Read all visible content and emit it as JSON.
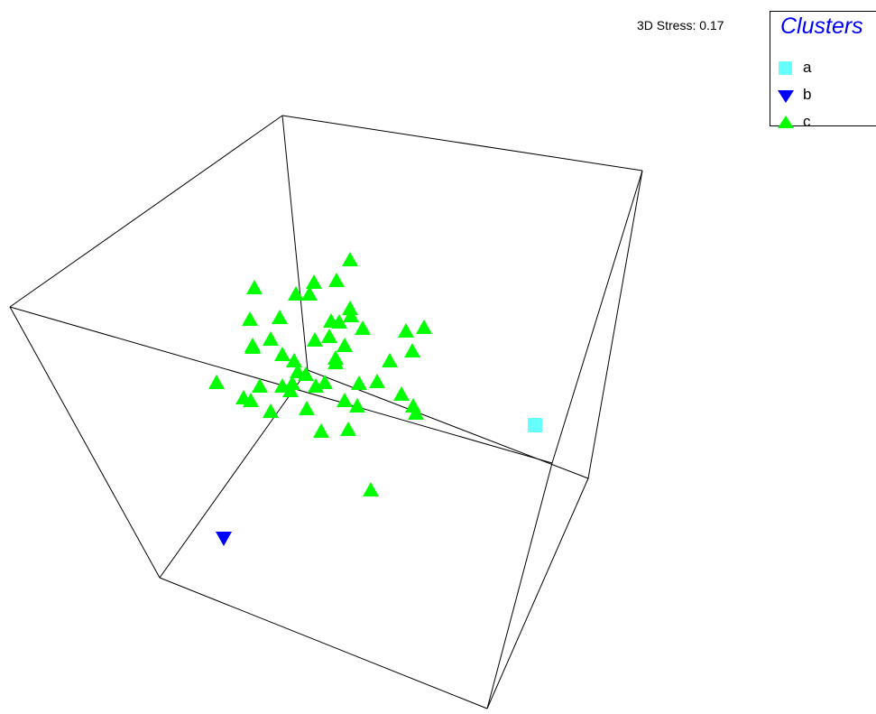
{
  "stress_label": "3D Stress: 0.17",
  "legend": {
    "title": "Clusters",
    "items": [
      {
        "label": "a",
        "shape": "square",
        "color": "#66ffff"
      },
      {
        "label": "b",
        "shape": "triangle-down",
        "color": "#0000ff"
      },
      {
        "label": "c",
        "shape": "triangle-up",
        "color": "#00ff00"
      }
    ]
  },
  "chart_data": {
    "type": "scatter",
    "subtype": "3D MDS ordination",
    "title": "",
    "xlabel": "",
    "ylabel": "",
    "series": [
      {
        "name": "a",
        "marker": "square",
        "color": "#66ffff",
        "points": [
          [
            593,
            471
          ]
        ]
      },
      {
        "name": "b",
        "marker": "triangle-down",
        "color": "#0000ff",
        "points": [
          [
            248,
            596
          ]
        ]
      },
      {
        "name": "c",
        "marker": "triangle-up",
        "color": "#00ff00",
        "points": [
          [
            388,
            288
          ],
          [
            282,
            319
          ],
          [
            348,
            313
          ],
          [
            373,
            311
          ],
          [
            328,
            326
          ],
          [
            343,
            326
          ],
          [
            277,
            354
          ],
          [
            310,
            352
          ],
          [
            367,
            356
          ],
          [
            389,
            350
          ],
          [
            388,
            342
          ],
          [
            376,
            357
          ],
          [
            280,
            385
          ],
          [
            280,
            383
          ],
          [
            300,
            376
          ],
          [
            349,
            377
          ],
          [
            365,
            373
          ],
          [
            450,
            367
          ],
          [
            470,
            363
          ],
          [
            402,
            364
          ],
          [
            457,
            389
          ],
          [
            313,
            393
          ],
          [
            372,
            397
          ],
          [
            382,
            383
          ],
          [
            432,
            400
          ],
          [
            240,
            424
          ],
          [
            288,
            428
          ],
          [
            270,
            441
          ],
          [
            278,
            444
          ],
          [
            313,
            428
          ],
          [
            322,
            433
          ],
          [
            350,
            428
          ],
          [
            360,
            424
          ],
          [
            372,
            402
          ],
          [
            398,
            425
          ],
          [
            418,
            423
          ],
          [
            445,
            437
          ],
          [
            458,
            450
          ],
          [
            461,
            458
          ],
          [
            300,
            456
          ],
          [
            340,
            453
          ],
          [
            356,
            478
          ],
          [
            382,
            444
          ],
          [
            386,
            476
          ],
          [
            396,
            450
          ],
          [
            330,
            412
          ],
          [
            326,
            400
          ],
          [
            324,
            425
          ],
          [
            339,
            415
          ],
          [
            411,
            543
          ]
        ]
      }
    ],
    "grid": false,
    "legend_position": "top-right"
  }
}
